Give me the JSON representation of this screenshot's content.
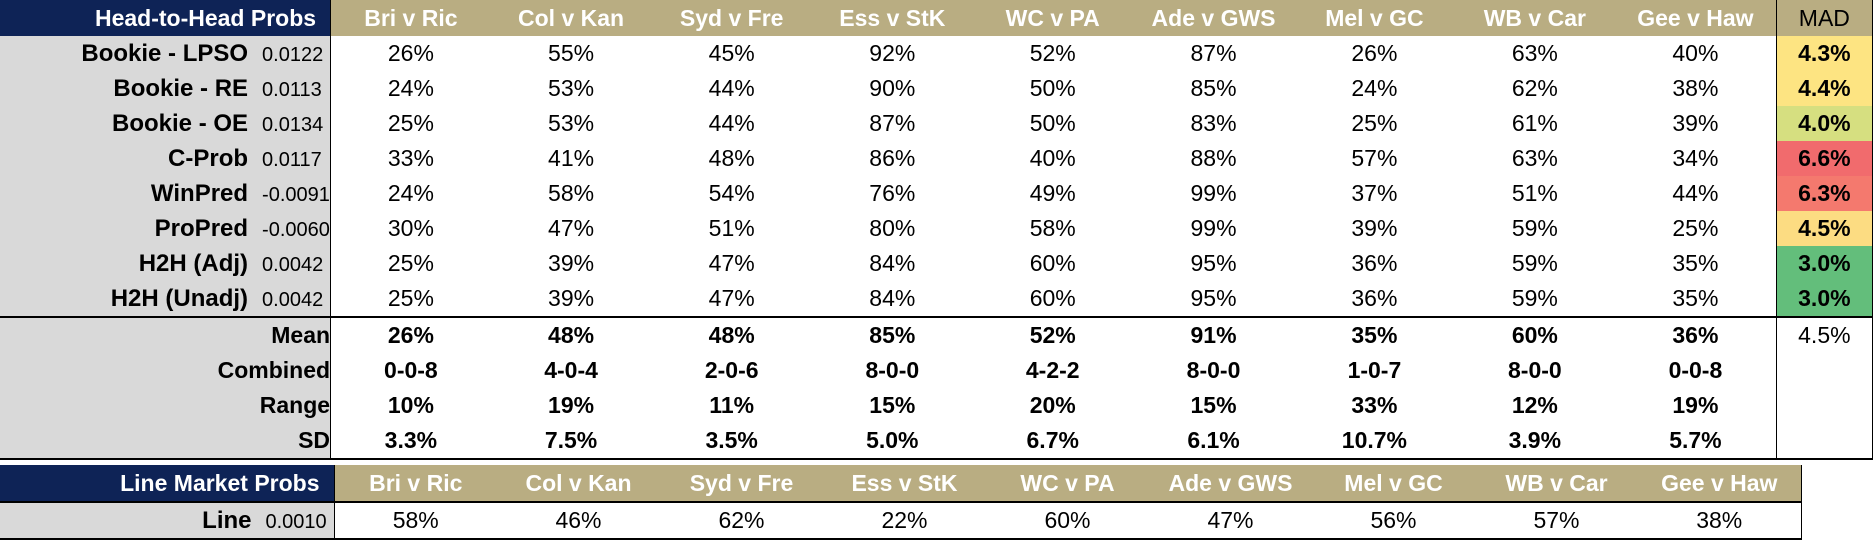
{
  "games": [
    "Bri v Ric",
    "Col v Kan",
    "Syd v Fre",
    "Ess v StK",
    "WC v PA",
    "Ade v GWS",
    "Mel v GC",
    "WB v Car",
    "Gee v Haw"
  ],
  "h2h": {
    "title": "Head-to-Head Probs",
    "mad_header": "MAD",
    "rows": [
      {
        "name": "Bookie - LPSO",
        "weight": "0.0122",
        "values": [
          "26%",
          "55%",
          "45%",
          "92%",
          "52%",
          "87%",
          "26%",
          "63%",
          "40%"
        ],
        "mad": "4.3%",
        "mad_color": "#fde482"
      },
      {
        "name": "Bookie - RE",
        "weight": "0.0113",
        "values": [
          "24%",
          "53%",
          "44%",
          "90%",
          "50%",
          "85%",
          "24%",
          "62%",
          "38%"
        ],
        "mad": "4.4%",
        "mad_color": "#fde482"
      },
      {
        "name": "Bookie - OE",
        "weight": "0.0134",
        "values": [
          "25%",
          "53%",
          "44%",
          "87%",
          "50%",
          "83%",
          "25%",
          "61%",
          "39%"
        ],
        "mad": "4.0%",
        "mad_color": "#d6df80"
      },
      {
        "name": "C-Prob",
        "weight": "0.0117",
        "values": [
          "33%",
          "41%",
          "48%",
          "86%",
          "40%",
          "88%",
          "57%",
          "63%",
          "34%"
        ],
        "mad": "6.6%",
        "mad_color": "#f16b6d"
      },
      {
        "name": "WinPred",
        "weight": "-0.0091",
        "values": [
          "24%",
          "58%",
          "54%",
          "76%",
          "49%",
          "99%",
          "37%",
          "51%",
          "44%"
        ],
        "mad": "6.3%",
        "mad_color": "#f4796e"
      },
      {
        "name": "ProPred",
        "weight": "-0.0060",
        "values": [
          "30%",
          "47%",
          "51%",
          "80%",
          "58%",
          "99%",
          "39%",
          "59%",
          "25%"
        ],
        "mad": "4.5%",
        "mad_color": "#fcdc82"
      },
      {
        "name": "H2H (Adj)",
        "weight": "0.0042",
        "values": [
          "25%",
          "39%",
          "47%",
          "84%",
          "60%",
          "95%",
          "36%",
          "59%",
          "35%"
        ],
        "mad": "3.0%",
        "mad_color": "#63be7b"
      },
      {
        "name": "H2H (Unadj)",
        "weight": "0.0042",
        "values": [
          "25%",
          "39%",
          "47%",
          "84%",
          "60%",
          "95%",
          "36%",
          "59%",
          "35%"
        ],
        "mad": "3.0%",
        "mad_color": "#63be7b"
      }
    ],
    "summary": [
      {
        "name": "Mean",
        "values": [
          "26%",
          "48%",
          "48%",
          "85%",
          "52%",
          "91%",
          "35%",
          "60%",
          "36%"
        ],
        "mad": "4.5%"
      },
      {
        "name": "Combined",
        "values": [
          "0-0-8",
          "4-0-4",
          "2-0-6",
          "8-0-0",
          "4-2-2",
          "8-0-0",
          "1-0-7",
          "8-0-0",
          "0-0-8"
        ],
        "mad": ""
      },
      {
        "name": "Range",
        "values": [
          "10%",
          "19%",
          "11%",
          "15%",
          "20%",
          "15%",
          "33%",
          "12%",
          "19%"
        ],
        "mad": ""
      },
      {
        "name": "SD",
        "values": [
          "3.3%",
          "7.5%",
          "3.5%",
          "5.0%",
          "6.7%",
          "6.1%",
          "10.7%",
          "3.9%",
          "5.7%"
        ],
        "mad": ""
      }
    ]
  },
  "line": {
    "title": "Line Market Probs",
    "rows": [
      {
        "name": "Line",
        "weight": "0.0010",
        "values": [
          "58%",
          "46%",
          "62%",
          "22%",
          "60%",
          "47%",
          "56%",
          "57%",
          "38%"
        ]
      }
    ]
  }
}
